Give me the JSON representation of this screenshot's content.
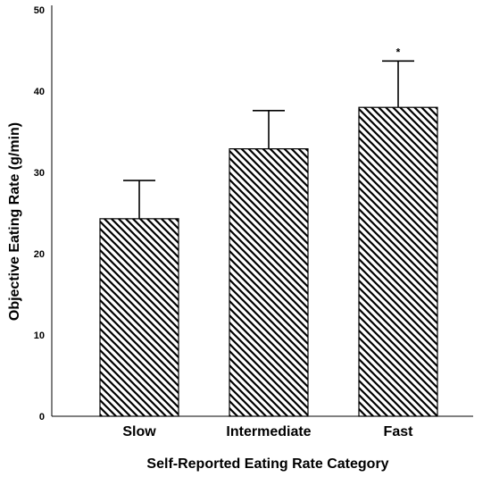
{
  "chart_data": {
    "type": "bar",
    "categories": [
      "Slow",
      "Intermediate",
      "Fast"
    ],
    "values": [
      24.3,
      32.9,
      38.0
    ],
    "error_upper": [
      29.0,
      37.6,
      43.7
    ],
    "annotations": [
      "",
      "",
      "*"
    ],
    "xlabel": "Self-Reported Eating Rate Category",
    "ylabel": "Objective Eating Rate (g/min)",
    "ylim": [
      0,
      50
    ],
    "yticks": [
      0,
      10,
      20,
      30,
      40,
      50
    ],
    "grid": false,
    "bar_fill": "diagonal-hatch",
    "colors": {
      "bar_stroke": "#000000",
      "hatch": "#000000",
      "background": "#ffffff"
    }
  }
}
